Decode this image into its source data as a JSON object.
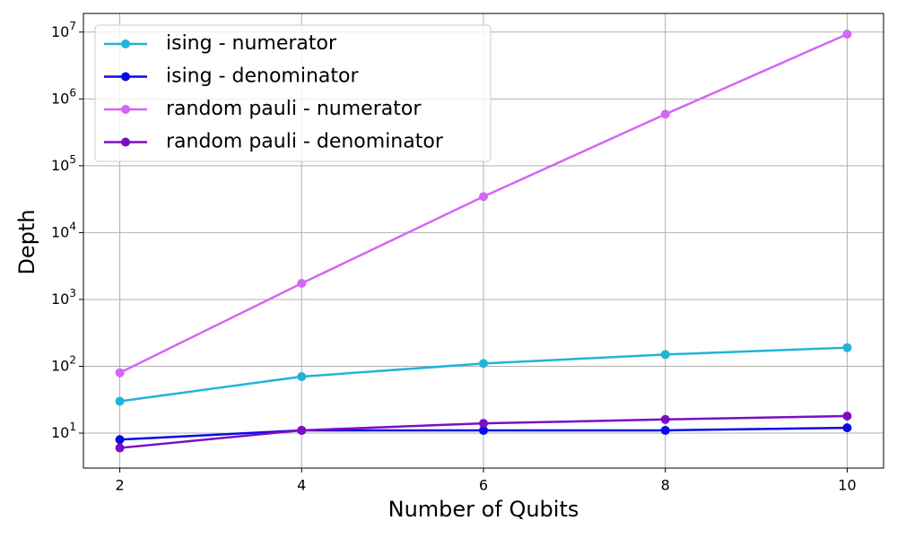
{
  "chart_data": {
    "type": "line",
    "x_label": "Number of Qubits",
    "y_label": "Depth",
    "x": [
      2,
      4,
      6,
      8,
      10
    ],
    "series": [
      {
        "name": "ising - numerator",
        "color": "#22b3d8",
        "values": [
          30,
          70,
          110,
          150,
          190
        ]
      },
      {
        "name": "ising - denominator",
        "color": "#0a0ae6",
        "values": [
          8,
          11,
          11,
          11,
          12
        ]
      },
      {
        "name": "random pauli - numerator",
        "color": "#d466f5",
        "values": [
          80,
          1740,
          34600,
          590000,
          9300000
        ]
      },
      {
        "name": "random pauli - denominator",
        "color": "#7d0dc3",
        "values": [
          6,
          11,
          14,
          16,
          18
        ]
      }
    ],
    "xlim": [
      1.6,
      10.4
    ],
    "xticks": [
      2,
      4,
      6,
      8,
      10
    ],
    "ylim": [
      3,
      19000000
    ],
    "yticks": [
      {
        "value": 10,
        "label": "10^1"
      },
      {
        "value": 100,
        "label": "10^2"
      },
      {
        "value": 1000,
        "label": "10^3"
      },
      {
        "value": 10000,
        "label": "10^4"
      },
      {
        "value": 100000,
        "label": "10^5"
      },
      {
        "value": 1000000,
        "label": "10^6"
      },
      {
        "value": 10000000,
        "label": "10^7"
      }
    ],
    "y_scale": "log",
    "grid": true,
    "legend_position": "upper-left"
  }
}
